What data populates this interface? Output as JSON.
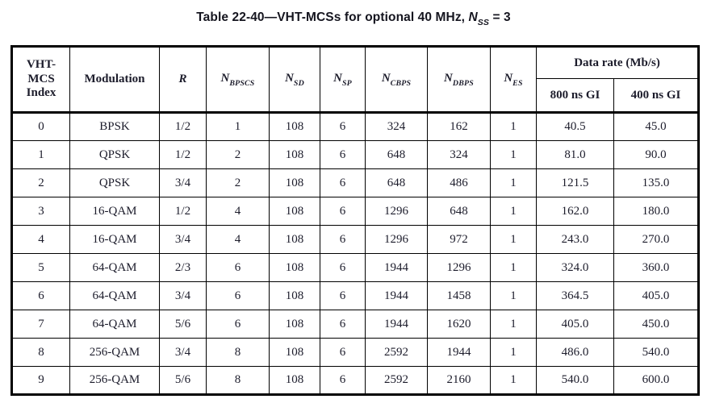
{
  "title": {
    "text": "Table 22-40—VHT-MCSs for optional 40 MHz, ",
    "var_base": "N",
    "var_sub": "SS",
    "equals": " = 3"
  },
  "table": {
    "header": {
      "col_index_line1": "VHT-",
      "col_index_line2": "MCS",
      "col_index_line3": "Index",
      "col_modulation": "Modulation",
      "col_r": "R",
      "col_nbpscs_base": "N",
      "col_nbpscs_sub": "BPSCS",
      "col_nsd_base": "N",
      "col_nsd_sub": "SD",
      "col_nsp_base": "N",
      "col_nsp_sub": "SP",
      "col_ncbps_base": "N",
      "col_ncbps_sub": "CBPS",
      "col_ndbps_base": "N",
      "col_ndbps_sub": "DBPS",
      "col_nes_base": "N",
      "col_nes_sub": "ES",
      "col_data_rate": "Data rate (Mb/s)",
      "col_gi_800": "800 ns GI",
      "col_gi_400": "400 ns GI"
    },
    "rows": [
      [
        "0",
        "BPSK",
        "1/2",
        "1",
        "108",
        "6",
        "324",
        "162",
        "1",
        "40.5",
        "45.0"
      ],
      [
        "1",
        "QPSK",
        "1/2",
        "2",
        "108",
        "6",
        "648",
        "324",
        "1",
        "81.0",
        "90.0"
      ],
      [
        "2",
        "QPSK",
        "3/4",
        "2",
        "108",
        "6",
        "648",
        "486",
        "1",
        "121.5",
        "135.0"
      ],
      [
        "3",
        "16-QAM",
        "1/2",
        "4",
        "108",
        "6",
        "1296",
        "648",
        "1",
        "162.0",
        "180.0"
      ],
      [
        "4",
        "16-QAM",
        "3/4",
        "4",
        "108",
        "6",
        "1296",
        "972",
        "1",
        "243.0",
        "270.0"
      ],
      [
        "5",
        "64-QAM",
        "2/3",
        "6",
        "108",
        "6",
        "1944",
        "1296",
        "1",
        "324.0",
        "360.0"
      ],
      [
        "6",
        "64-QAM",
        "3/4",
        "6",
        "108",
        "6",
        "1944",
        "1458",
        "1",
        "364.5",
        "405.0"
      ],
      [
        "7",
        "64-QAM",
        "5/6",
        "6",
        "108",
        "6",
        "1944",
        "1620",
        "1",
        "405.0",
        "450.0"
      ],
      [
        "8",
        "256-QAM",
        "3/4",
        "8",
        "108",
        "6",
        "2592",
        "1944",
        "1",
        "486.0",
        "540.0"
      ],
      [
        "9",
        "256-QAM",
        "5/6",
        "8",
        "108",
        "6",
        "2592",
        "2160",
        "1",
        "540.0",
        "600.0"
      ]
    ],
    "colors": {
      "text": "#1c1c2b",
      "border": "#000000",
      "background": "#ffffff"
    }
  }
}
